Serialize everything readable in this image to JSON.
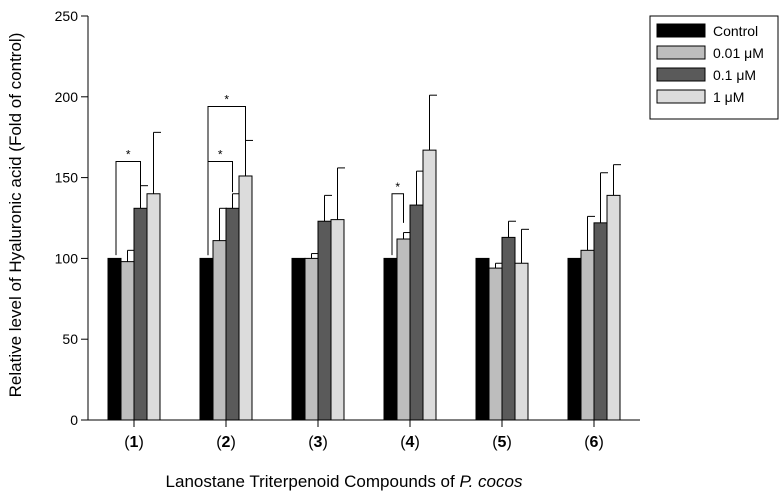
{
  "chart_data": {
    "type": "bar",
    "title": "",
    "xlabel_prefix": "Lanostane Triterpenoid Compounds of ",
    "xlabel_italic": "P. cocos",
    "ylabel": "Relative level of Hyaluronic acid (Fold of control)",
    "ylim": [
      0,
      250
    ],
    "yticks": [
      0,
      50,
      100,
      150,
      200,
      250
    ],
    "categories": [
      "1",
      "2",
      "3",
      "4",
      "5",
      "6"
    ],
    "series": [
      {
        "name": "Control",
        "color": "#000000",
        "values": [
          100,
          100,
          100,
          100,
          100,
          100
        ],
        "errors": [
          0,
          0,
          0,
          0,
          0,
          0
        ]
      },
      {
        "name": "0.01 μM",
        "color": "#bdbdbd",
        "values": [
          98,
          111,
          100,
          112,
          94,
          105
        ],
        "errors": [
          7,
          20,
          3,
          4,
          3,
          21
        ]
      },
      {
        "name": "0.1 μM",
        "color": "#5a5a5a",
        "values": [
          131,
          131,
          123,
          133,
          113,
          122
        ],
        "errors": [
          14,
          9,
          16,
          21,
          10,
          31
        ]
      },
      {
        "name": "1 μM",
        "color": "#dcdcdc",
        "values": [
          140,
          151,
          124,
          167,
          97,
          139
        ],
        "errors": [
          38,
          22,
          32,
          34,
          21,
          19
        ]
      }
    ],
    "significance": [
      {
        "category": 0,
        "from_series": 0,
        "to_series": 2,
        "label": "*"
      },
      {
        "category": 1,
        "from_series": 0,
        "to_series": 2,
        "label": "*"
      },
      {
        "category": 1,
        "from_series": 0,
        "to_series": 3,
        "label": "*"
      },
      {
        "category": 3,
        "from_series": 0,
        "to_series": 1,
        "label": "*"
      }
    ],
    "legend": "top-right"
  }
}
